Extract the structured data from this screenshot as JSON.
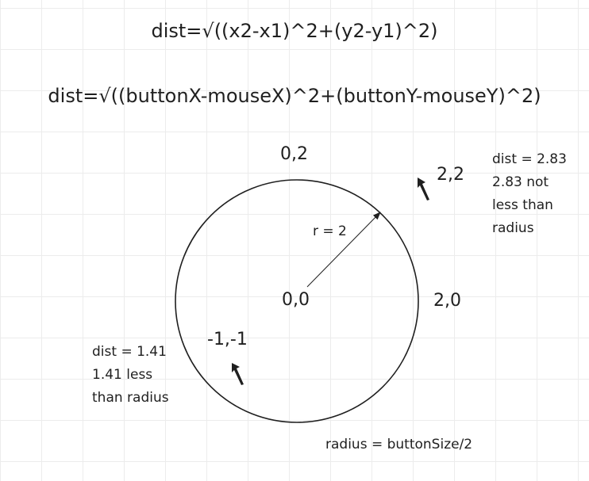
{
  "formulas": {
    "generic": "dist=√((x2-x1)^2+(y2-y1)^2)",
    "applied": "dist=√((buttonX-mouseX)^2+(buttonY-mouseY)^2)"
  },
  "points": {
    "top": "0,2",
    "corner": "2,2",
    "center": "0,0",
    "right": "2,0",
    "inside": "-1,-1"
  },
  "radius_label": "r = 2",
  "notes": {
    "outside": [
      "dist = 2.83",
      "2.83 not",
      "less than",
      "radius"
    ],
    "inside": [
      "dist = 1.41",
      "1.41 less",
      "than radius"
    ]
  },
  "radius_caption": "radius = buttonSize/2",
  "colors": {
    "stroke": "#1f1f1f",
    "grid": "#ececec",
    "background": "#ffffff"
  },
  "icons": [
    "mouse-cursor-icon",
    "mouse-cursor-icon"
  ]
}
